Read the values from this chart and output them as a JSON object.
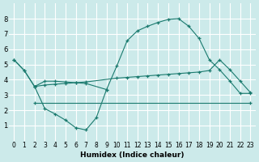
{
  "xlabel": "Humidex (Indice chaleur)",
  "bg_color": "#cceaea",
  "grid_color": "#ffffff",
  "line_color": "#1a7a6e",
  "xlim": [
    -0.5,
    23.5
  ],
  "ylim": [
    0,
    9
  ],
  "xticks": [
    0,
    1,
    2,
    3,
    4,
    5,
    6,
    7,
    8,
    9,
    10,
    11,
    12,
    13,
    14,
    15,
    16,
    17,
    18,
    19,
    20,
    21,
    22,
    23
  ],
  "yticks": [
    1,
    2,
    3,
    4,
    5,
    6,
    7,
    8
  ],
  "series": [
    {
      "x": [
        0,
        1,
        2,
        3,
        4,
        5,
        6,
        7,
        9,
        10,
        11,
        12,
        13,
        14,
        15,
        16,
        17,
        18,
        19,
        20,
        21,
        22,
        23
      ],
      "y": [
        5.3,
        4.6,
        3.55,
        3.9,
        3.9,
        3.85,
        3.8,
        3.75,
        3.35,
        4.9,
        6.55,
        7.2,
        7.5,
        7.75,
        7.95,
        8.0,
        7.5,
        6.7,
        5.3,
        4.65,
        3.9,
        3.1,
        3.1
      ]
    },
    {
      "x": [
        0,
        1,
        2,
        3,
        4,
        5,
        6,
        7,
        10,
        11,
        12,
        13,
        14,
        15,
        16,
        17,
        18,
        19,
        20,
        21,
        22,
        23
      ],
      "y": [
        5.3,
        4.6,
        3.55,
        3.65,
        3.7,
        3.75,
        3.8,
        3.85,
        4.1,
        4.15,
        4.2,
        4.25,
        4.3,
        4.35,
        4.4,
        4.45,
        4.5,
        4.6,
        5.3,
        4.65,
        3.9,
        3.15
      ]
    },
    {
      "x": [
        2,
        23
      ],
      "y": [
        2.5,
        2.5
      ]
    },
    {
      "x": [
        2,
        3,
        4,
        5,
        6,
        7,
        8,
        9
      ],
      "y": [
        3.55,
        2.1,
        1.75,
        1.35,
        0.85,
        0.7,
        1.5,
        3.35
      ]
    }
  ]
}
